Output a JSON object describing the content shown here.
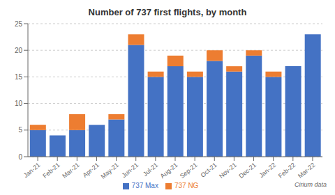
{
  "chart_data": {
    "type": "bar",
    "title": "Number of 737 first flights, by month",
    "categories": [
      "Jan-21",
      "Feb-21",
      "Mar-21",
      "Apr-21",
      "May-21",
      "Jun-21",
      "Jul-21",
      "Aug-21",
      "Sep-21",
      "Oct-21",
      "Nov-21",
      "Dec-21",
      "Jan-22",
      "Feb-22",
      "Mar-22"
    ],
    "series": [
      {
        "name": "737 Max",
        "color": "#4472C4",
        "values": [
          5,
          4,
          5,
          6,
          7,
          21,
          15,
          17,
          15,
          18,
          16,
          19,
          15,
          17,
          23
        ]
      },
      {
        "name": "737 NG",
        "color": "#ED7D31",
        "values": [
          1,
          0,
          3,
          0,
          1,
          2,
          1,
          2,
          1,
          2,
          1,
          1,
          1,
          0,
          0
        ]
      }
    ],
    "stacked": true,
    "ylim": [
      0,
      25
    ],
    "yticks": [
      0,
      5,
      10,
      15,
      20,
      25
    ],
    "grid": true,
    "legend": "bottom",
    "annotations": [
      "Cirium data"
    ]
  }
}
